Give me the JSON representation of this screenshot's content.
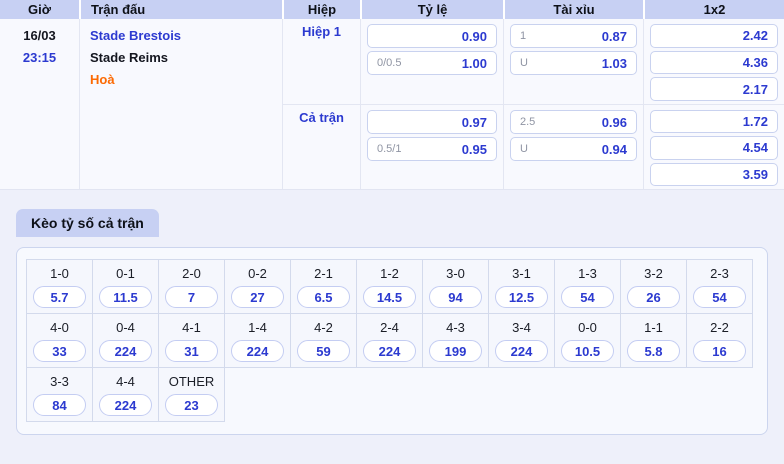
{
  "colors": {
    "accent_blue": "#2c3ad0",
    "status_orange": "#fc6a03",
    "header_bg": "#c7d0f3",
    "page_bg": "#eef0fa"
  },
  "odds_table": {
    "headers": {
      "time": "Giờ",
      "match": "Trận đấu",
      "period": "Hiệp",
      "handicap": "Tỷ lệ",
      "over_under": "Tài xỉu",
      "one_x_two": "1x2"
    },
    "match": {
      "date": "16/03",
      "time": "23:15",
      "home": "Stade Brestois",
      "away": "Stade Reims",
      "status": "Hoà"
    },
    "periods": [
      {
        "label": "Hiệp 1",
        "handicap": [
          {
            "prefix": "",
            "value": "0.90"
          },
          {
            "prefix": "0/0.5",
            "value": "1.00"
          }
        ],
        "over_under": [
          {
            "prefix": "1",
            "value": "0.87"
          },
          {
            "prefix": "U",
            "value": "1.03"
          }
        ],
        "one_x_two": [
          {
            "value": "2.42"
          },
          {
            "value": "4.36"
          },
          {
            "value": "2.17"
          }
        ]
      },
      {
        "label": "Cả trận",
        "handicap": [
          {
            "prefix": "",
            "value": "0.97"
          },
          {
            "prefix": "0.5/1",
            "value": "0.95"
          }
        ],
        "over_under": [
          {
            "prefix": "2.5",
            "value": "0.96"
          },
          {
            "prefix": "U",
            "value": "0.94"
          }
        ],
        "one_x_two": [
          {
            "value": "1.72"
          },
          {
            "value": "4.54"
          },
          {
            "value": "3.59"
          }
        ]
      }
    ]
  },
  "score_section": {
    "title": "Kèo tỷ số cả trận",
    "rows": [
      [
        {
          "score": "1-0",
          "odds": "5.7"
        },
        {
          "score": "0-1",
          "odds": "11.5"
        },
        {
          "score": "2-0",
          "odds": "7"
        },
        {
          "score": "0-2",
          "odds": "27"
        },
        {
          "score": "2-1",
          "odds": "6.5"
        },
        {
          "score": "1-2",
          "odds": "14.5"
        },
        {
          "score": "3-0",
          "odds": "94"
        },
        {
          "score": "3-1",
          "odds": "12.5"
        },
        {
          "score": "1-3",
          "odds": "54"
        },
        {
          "score": "3-2",
          "odds": "26"
        },
        {
          "score": "2-3",
          "odds": "54"
        }
      ],
      [
        {
          "score": "4-0",
          "odds": "33"
        },
        {
          "score": "0-4",
          "odds": "224"
        },
        {
          "score": "4-1",
          "odds": "31"
        },
        {
          "score": "1-4",
          "odds": "224"
        },
        {
          "score": "4-2",
          "odds": "59"
        },
        {
          "score": "2-4",
          "odds": "224"
        },
        {
          "score": "4-3",
          "odds": "199"
        },
        {
          "score": "3-4",
          "odds": "224"
        },
        {
          "score": "0-0",
          "odds": "10.5"
        },
        {
          "score": "1-1",
          "odds": "5.8"
        },
        {
          "score": "2-2",
          "odds": "16"
        }
      ],
      [
        {
          "score": "3-3",
          "odds": "84"
        },
        {
          "score": "4-4",
          "odds": "224"
        },
        {
          "score": "OTHER",
          "odds": "23"
        }
      ]
    ]
  }
}
